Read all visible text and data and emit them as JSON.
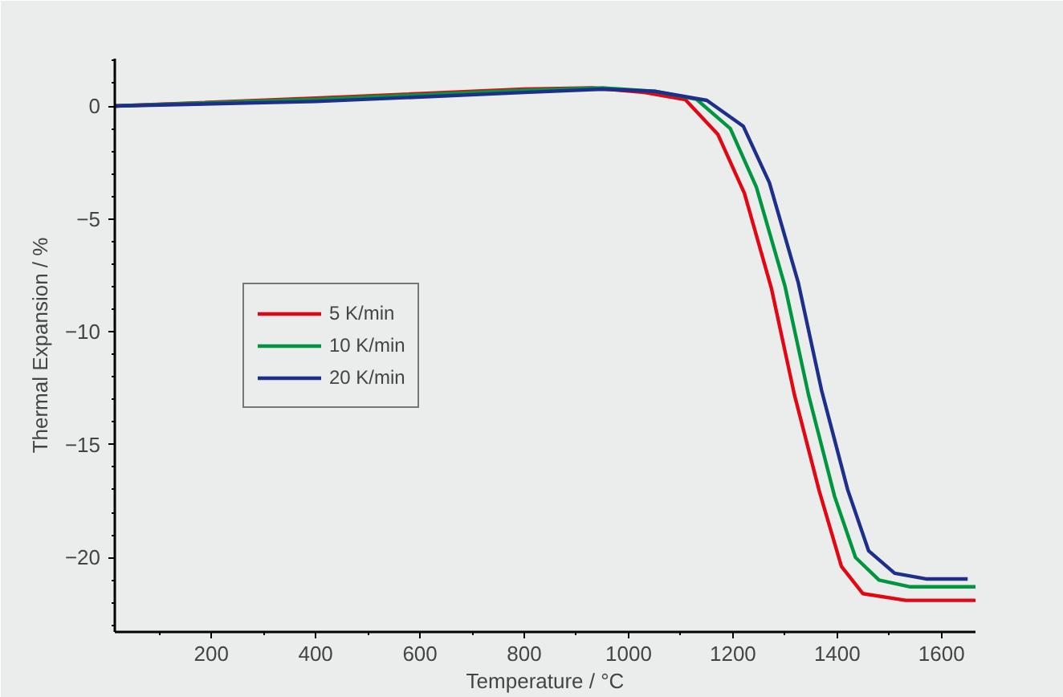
{
  "chart_data": {
    "type": "line",
    "xlabel": "Temperature / °C",
    "ylabel": "Thermal Expansion / %",
    "xlim": [
      15,
      1665
    ],
    "ylim": [
      -23.3,
      2.1
    ],
    "xticks": [
      200,
      400,
      600,
      800,
      1000,
      1200,
      1400,
      1600
    ],
    "yticks": [
      0,
      -5,
      -10,
      -15,
      -20
    ],
    "grid": false,
    "legend": "left",
    "marker": "none",
    "line_style": "solid",
    "series": [
      {
        "name": "5 K/min",
        "color": "#e30613",
        "x": [
          15,
          400,
          800,
          930,
          1030,
          1109,
          1171,
          1222,
          1274,
          1318,
          1366,
          1408,
          1449,
          1531,
          1665
        ],
        "values": [
          0,
          0.35,
          0.75,
          0.8,
          0.6,
          0.28,
          -1.25,
          -3.86,
          -8.1,
          -12.8,
          -17.1,
          -20.4,
          -21.6,
          -21.9,
          -21.9
        ]
      },
      {
        "name": "10 K/min",
        "color": "#009640",
        "x": [
          15,
          400,
          800,
          950,
          1050,
          1130,
          1195,
          1245,
          1300,
          1345,
          1395,
          1435,
          1480,
          1540,
          1665
        ],
        "values": [
          0,
          0.3,
          0.7,
          0.8,
          0.65,
          0.3,
          -1.0,
          -3.6,
          -8.0,
          -12.8,
          -17.3,
          -20.0,
          -21.0,
          -21.3,
          -21.3
        ]
      },
      {
        "name": "20 K/min",
        "color": "#1d2f8a",
        "x": [
          15,
          400,
          800,
          950,
          1050,
          1150,
          1220,
          1270,
          1325,
          1370,
          1420,
          1460,
          1510,
          1570,
          1650
        ],
        "values": [
          0,
          0.2,
          0.6,
          0.75,
          0.65,
          0.25,
          -0.9,
          -3.4,
          -7.8,
          -12.6,
          -17.0,
          -19.7,
          -20.7,
          -20.95,
          -20.95
        ]
      }
    ]
  }
}
